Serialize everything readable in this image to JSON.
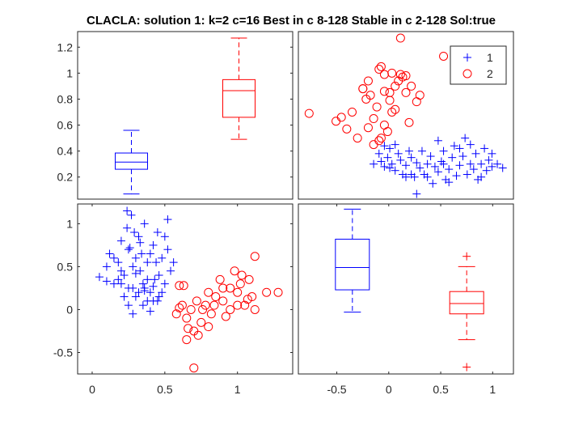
{
  "title": "CLACLA: solution 1: k=2 c=16 Best in c 8-128 Stable in c 2-128 Sol:true",
  "colors": {
    "series1": "#0000FF",
    "series2": "#FF0000",
    "axis": "#262626"
  },
  "legend": {
    "placement": "top-right of upper-right panel",
    "entries": [
      "1",
      "2"
    ]
  },
  "chart_data": [
    {
      "panel": "top-left",
      "type": "box",
      "categories": [
        "1",
        "2"
      ],
      "boxes": [
        {
          "group": "1",
          "color": "#0000FF",
          "whisker_low": 0.07,
          "q1": 0.26,
          "median": 0.315,
          "q3": 0.385,
          "whisker_high": 0.56
        },
        {
          "group": "2",
          "color": "#FF0000",
          "whisker_low": 0.49,
          "q1": 0.66,
          "median": 0.865,
          "q3": 0.95,
          "whisker_high": 1.27
        }
      ],
      "ylim": [
        0.03,
        1.32
      ],
      "yticks": [
        0.2,
        0.4,
        0.6,
        0.8,
        1.0,
        1.2
      ],
      "ytick_labels": [
        "0.2",
        "0.4",
        "0.6",
        "0.8",
        "1",
        "1.2"
      ]
    },
    {
      "panel": "top-right",
      "type": "scatter",
      "xlim": [
        -0.75,
        1.25
      ],
      "ylim": [
        0.03,
        1.32
      ],
      "series": [
        {
          "name": "1",
          "marker": "+",
          "color": "#0000FF",
          "points": [
            [
              0.0,
              0.38
            ],
            [
              0.02,
              0.32
            ],
            [
              0.05,
              0.28
            ],
            [
              0.08,
              0.35
            ],
            [
              0.1,
              0.42
            ],
            [
              0.12,
              0.3
            ],
            [
              0.15,
              0.25
            ],
            [
              0.18,
              0.38
            ],
            [
              0.2,
              0.33
            ],
            [
              0.22,
              0.22
            ],
            [
              0.25,
              0.29
            ],
            [
              0.28,
              0.4
            ],
            [
              0.3,
              0.35
            ],
            [
              0.33,
              0.2
            ],
            [
              0.35,
              0.31
            ],
            [
              0.38,
              0.27
            ],
            [
              0.4,
              0.4
            ],
            [
              0.42,
              0.22
            ],
            [
              0.45,
              0.3
            ],
            [
              0.48,
              0.36
            ],
            [
              0.5,
              0.15
            ],
            [
              0.52,
              0.28
            ],
            [
              0.55,
              0.24
            ],
            [
              0.58,
              0.32
            ],
            [
              0.6,
              0.4
            ],
            [
              0.62,
              0.18
            ],
            [
              0.65,
              0.26
            ],
            [
              0.68,
              0.35
            ],
            [
              0.7,
              0.44
            ],
            [
              0.72,
              0.21
            ],
            [
              0.75,
              0.29
            ],
            [
              0.78,
              0.36
            ],
            [
              0.8,
              0.5
            ],
            [
              0.82,
              0.22
            ],
            [
              0.85,
              0.3
            ],
            [
              0.88,
              0.26
            ],
            [
              0.9,
              0.38
            ],
            [
              0.92,
              0.18
            ],
            [
              0.95,
              0.3
            ],
            [
              0.98,
              0.42
            ],
            [
              1.0,
              0.25
            ],
            [
              1.02,
              0.33
            ],
            [
              1.05,
              0.28
            ],
            [
              1.1,
              0.3
            ],
            [
              1.15,
              0.27
            ],
            [
              0.05,
              0.44
            ],
            [
              0.15,
              0.45
            ],
            [
              0.25,
              0.2
            ],
            [
              0.35,
              0.07
            ],
            [
              0.45,
              0.2
            ],
            [
              0.55,
              0.48
            ],
            [
              0.65,
              0.16
            ],
            [
              0.75,
              0.42
            ],
            [
              0.85,
              0.45
            ],
            [
              0.95,
              0.2
            ],
            [
              1.05,
              0.38
            ],
            [
              -0.05,
              0.3
            ],
            [
              0.1,
              0.27
            ],
            [
              0.3,
              0.22
            ],
            [
              0.6,
              0.3
            ]
          ]
        },
        {
          "name": "2",
          "marker": "o",
          "color": "#FF0000",
          "points": [
            [
              -0.65,
              0.69
            ],
            [
              -0.4,
              0.63
            ],
            [
              -0.35,
              0.66
            ],
            [
              -0.3,
              0.57
            ],
            [
              -0.25,
              0.7
            ],
            [
              -0.2,
              0.5
            ],
            [
              -0.15,
              0.88
            ],
            [
              -0.12,
              0.8
            ],
            [
              -0.1,
              0.94
            ],
            [
              -0.05,
              0.65
            ],
            [
              -0.02,
              0.74
            ],
            [
              0.0,
              1.03
            ],
            [
              0.02,
              1.05
            ],
            [
              0.05,
              0.86
            ],
            [
              0.08,
              0.55
            ],
            [
              0.1,
              0.79
            ],
            [
              0.12,
              0.7
            ],
            [
              0.15,
              0.9
            ],
            [
              0.18,
              0.94
            ],
            [
              0.2,
              0.99
            ],
            [
              0.22,
              0.97
            ],
            [
              0.25,
              0.85
            ],
            [
              0.28,
              0.62
            ],
            [
              0.3,
              0.9
            ],
            [
              0.35,
              0.78
            ],
            [
              0.38,
              0.83
            ],
            [
              0.2,
              1.27
            ],
            [
              0.6,
              1.13
            ],
            [
              -0.1,
              0.58
            ],
            [
              0.0,
              0.48
            ],
            [
              0.02,
              0.5
            ],
            [
              0.05,
              0.6
            ],
            [
              -0.05,
              0.45
            ],
            [
              0.1,
              0.85
            ],
            [
              0.15,
              0.72
            ],
            [
              0.05,
              0.99
            ],
            [
              0.12,
              1.0
            ],
            [
              0.25,
              0.98
            ],
            [
              -0.08,
              0.83
            ],
            [
              -0.15,
              0.88
            ]
          ]
        }
      ]
    },
    {
      "panel": "bottom-left",
      "type": "scatter",
      "xlim": [
        -0.1,
        1.38
      ],
      "ylim": [
        -0.75,
        1.23
      ],
      "xticks": [
        0,
        0.5,
        1
      ],
      "xtick_labels": [
        "0",
        "0.5",
        "1"
      ],
      "yticks": [
        -0.5,
        0,
        0.5,
        1
      ],
      "ytick_labels": [
        "-0.5",
        "0",
        "0.5",
        "1"
      ],
      "series": [
        {
          "name": "1",
          "marker": "+",
          "color": "#0000FF",
          "points": [
            [
              0.05,
              0.38
            ],
            [
              0.1,
              0.5
            ],
            [
              0.12,
              0.65
            ],
            [
              0.15,
              0.3
            ],
            [
              0.18,
              0.55
            ],
            [
              0.2,
              0.8
            ],
            [
              0.22,
              0.4
            ],
            [
              0.24,
              0.95
            ],
            [
              0.25,
              0.7
            ],
            [
              0.27,
              1.1
            ],
            [
              0.28,
              0.25
            ],
            [
              0.3,
              0.6
            ],
            [
              0.32,
              0.85
            ],
            [
              0.33,
              0.45
            ],
            [
              0.35,
              0.3
            ],
            [
              0.36,
              1.0
            ],
            [
              0.38,
              0.55
            ],
            [
              0.4,
              0.2
            ],
            [
              0.42,
              0.75
            ],
            [
              0.43,
              0.35
            ],
            [
              0.45,
              0.9
            ],
            [
              0.46,
              0.15
            ],
            [
              0.48,
              0.6
            ],
            [
              0.5,
              0.3
            ],
            [
              0.52,
              1.05
            ],
            [
              0.54,
              0.45
            ],
            [
              0.25,
              0.05
            ],
            [
              0.28,
              -0.05
            ],
            [
              0.3,
              0.15
            ],
            [
              0.35,
              0.05
            ],
            [
              0.38,
              0.1
            ],
            [
              0.4,
              -0.02
            ],
            [
              0.45,
              0.1
            ],
            [
              0.2,
              0.3
            ],
            [
              0.22,
              0.15
            ],
            [
              0.18,
              0.35
            ],
            [
              0.15,
              0.6
            ],
            [
              0.3,
              0.42
            ],
            [
              0.32,
              0.2
            ],
            [
              0.36,
              0.22
            ],
            [
              0.42,
              0.27
            ],
            [
              0.48,
              0.2
            ],
            [
              0.26,
              0.72
            ],
            [
              0.34,
              0.65
            ],
            [
              0.44,
              0.55
            ],
            [
              0.5,
              0.85
            ],
            [
              0.24,
              1.15
            ],
            [
              0.29,
              0.9
            ],
            [
              0.33,
              0.78
            ],
            [
              0.4,
              0.65
            ],
            [
              0.1,
              0.33
            ],
            [
              0.2,
              0.45
            ],
            [
              0.38,
              0.35
            ],
            [
              0.46,
              0.4
            ],
            [
              0.52,
              0.7
            ],
            [
              0.56,
              0.55
            ],
            [
              0.28,
              0.5
            ],
            [
              0.36,
              0.25
            ],
            [
              0.42,
              0.1
            ],
            [
              0.25,
              0.25
            ]
          ]
        },
        {
          "name": "2",
          "marker": "o",
          "color": "#FF0000",
          "points": [
            [
              0.6,
              0.28
            ],
            [
              0.62,
              0.05
            ],
            [
              0.65,
              -0.1
            ],
            [
              0.68,
              0.0
            ],
            [
              0.7,
              -0.25
            ],
            [
              0.72,
              0.1
            ],
            [
              0.75,
              -0.15
            ],
            [
              0.78,
              0.05
            ],
            [
              0.8,
              0.2
            ],
            [
              0.82,
              -0.05
            ],
            [
              0.85,
              0.15
            ],
            [
              0.88,
              0.35
            ],
            [
              0.9,
              0.1
            ],
            [
              0.92,
              -0.08
            ],
            [
              0.95,
              0.25
            ],
            [
              0.98,
              0.45
            ],
            [
              1.0,
              0.2
            ],
            [
              1.02,
              0.3
            ],
            [
              1.05,
              0.05
            ],
            [
              1.08,
              0.35
            ],
            [
              1.1,
              0.15
            ],
            [
              1.12,
              0.62
            ],
            [
              1.2,
              0.2
            ],
            [
              1.28,
              0.2
            ],
            [
              0.7,
              -0.68
            ],
            [
              0.63,
              0.28
            ],
            [
              0.66,
              -0.22
            ],
            [
              0.73,
              -0.3
            ],
            [
              0.76,
              0.0
            ],
            [
              0.8,
              -0.2
            ],
            [
              0.84,
              0.05
            ],
            [
              0.9,
              0.25
            ],
            [
              0.95,
              0.0
            ],
            [
              1.0,
              0.05
            ],
            [
              1.03,
              0.4
            ],
            [
              1.07,
              0.12
            ],
            [
              1.12,
              0.0
            ],
            [
              0.58,
              -0.05
            ],
            [
              0.6,
              0.02
            ],
            [
              0.65,
              -0.35
            ]
          ]
        }
      ]
    },
    {
      "panel": "bottom-right",
      "type": "box",
      "xlim": [
        -0.87,
        1.2
      ],
      "ylim": [
        -0.75,
        1.23
      ],
      "xticks": [
        -0.5,
        0,
        0.5,
        1
      ],
      "xtick_labels": [
        "-0.5",
        "0",
        "0.5",
        "1"
      ],
      "boxes": [
        {
          "group": "1",
          "color": "#0000FF",
          "position": -0.35,
          "whisker_low": -0.03,
          "q1": 0.23,
          "median": 0.49,
          "q3": 0.82,
          "whisker_high": 1.17,
          "outliers": []
        },
        {
          "group": "2",
          "color": "#FF0000",
          "position": 0.75,
          "whisker_low": -0.35,
          "q1": -0.05,
          "median": 0.07,
          "q3": 0.21,
          "whisker_high": 0.5,
          "outliers": [
            0.62,
            -0.67
          ]
        }
      ]
    }
  ]
}
